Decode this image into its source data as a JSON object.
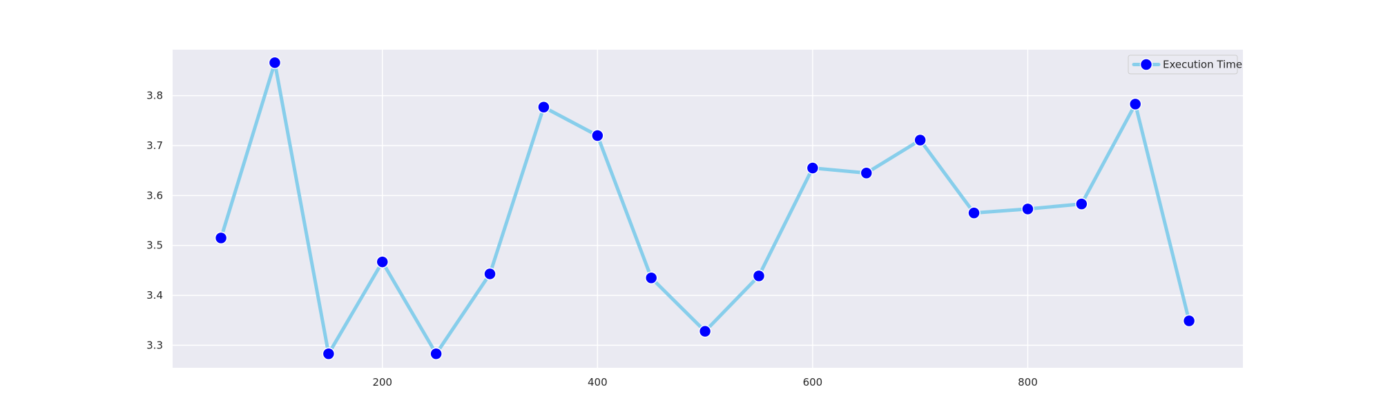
{
  "chart_data": {
    "type": "line",
    "title": "",
    "xlabel": "",
    "ylabel": "",
    "xlim": [
      5,
      1000
    ],
    "ylim": [
      3.255,
      3.892
    ],
    "xticks": [
      200,
      400,
      600,
      800
    ],
    "yticks": [
      3.3,
      3.4,
      3.5,
      3.6,
      3.7,
      3.8
    ],
    "grid": true,
    "legend_position": "top-right",
    "series": [
      {
        "name": "Execution Time",
        "x": [
          50,
          100,
          150,
          200,
          250,
          300,
          350,
          400,
          450,
          500,
          550,
          600,
          650,
          700,
          750,
          800,
          850,
          900,
          950
        ],
        "y": [
          3.515,
          3.866,
          3.283,
          3.467,
          3.283,
          3.443,
          3.777,
          3.72,
          3.435,
          3.328,
          3.439,
          3.655,
          3.645,
          3.711,
          3.565,
          3.573,
          3.583,
          3.783,
          3.349
        ],
        "line_color": "#87CEEB",
        "marker_color": "#0000FF",
        "marker_edge_color": "#FFFFFF"
      }
    ]
  },
  "style": {
    "plot_background": "#EAEAF2",
    "grid_color": "#FFFFFF",
    "tick_color": "#262626"
  }
}
